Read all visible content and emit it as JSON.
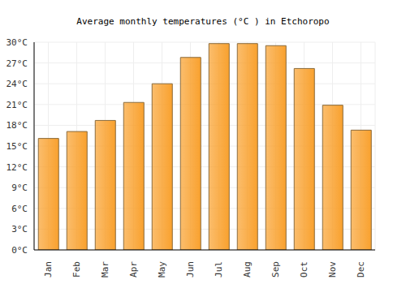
{
  "chart_data": {
    "type": "bar",
    "title": "Average monthly temperatures (°C ) in Etchoropo",
    "categories": [
      "Jan",
      "Feb",
      "Mar",
      "Apr",
      "May",
      "Jun",
      "Jul",
      "Aug",
      "Sep",
      "Oct",
      "Nov",
      "Dec"
    ],
    "values": [
      16.1,
      17.1,
      18.7,
      21.3,
      24.0,
      27.8,
      29.8,
      29.8,
      29.5,
      26.2,
      20.9,
      17.3
    ],
    "color": "#f9a12e",
    "ylim": [
      0,
      30
    ],
    "yticks": [
      {
        "value": 0,
        "label": "0°C"
      },
      {
        "value": 3,
        "label": "3°C"
      },
      {
        "value": 6,
        "label": "6°C"
      },
      {
        "value": 9,
        "label": "9°C"
      },
      {
        "value": 12,
        "label": "12°C"
      },
      {
        "value": 15,
        "label": "15°C"
      },
      {
        "value": 18,
        "label": "18°C"
      },
      {
        "value": 21,
        "label": "21°C"
      },
      {
        "value": 24,
        "label": "24°C"
      },
      {
        "value": 27,
        "label": "27°C"
      },
      {
        "value": 30,
        "label": "30°C"
      }
    ],
    "grid": true
  }
}
